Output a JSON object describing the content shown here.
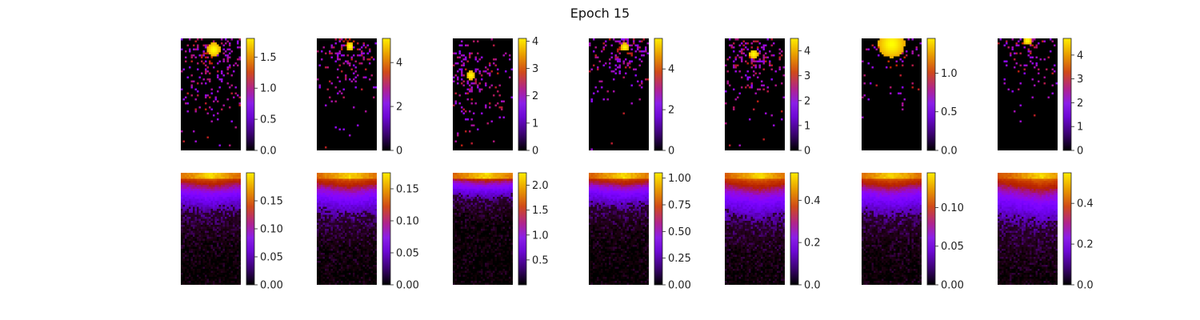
{
  "title": "Epoch 15",
  "colormap": "gnuplot",
  "chart_data": [
    {
      "type": "heatmap",
      "row": 1,
      "col": 1,
      "pattern": "sparse",
      "hotspot": [
        0.55,
        0.1
      ],
      "spread": 0.15,
      "density": 0.5,
      "fall": 0.7,
      "colorbar": {
        "range": [
          0,
          1.8
        ],
        "ticks": [
          0.0,
          0.5,
          1.0,
          1.5
        ],
        "labels": [
          "0.0",
          "0.5",
          "1.0",
          "1.5"
        ]
      }
    },
    {
      "type": "heatmap",
      "row": 1,
      "col": 2,
      "pattern": "sparse",
      "hotspot": [
        0.55,
        0.07
      ],
      "spread": 0.09,
      "density": 0.45,
      "fall": 0.55,
      "colorbar": {
        "range": [
          0,
          5.1
        ],
        "ticks": [
          0,
          2,
          4
        ],
        "labels": [
          "0",
          "2",
          "4"
        ]
      }
    },
    {
      "type": "heatmap",
      "row": 1,
      "col": 3,
      "pattern": "sparse",
      "hotspot": [
        0.3,
        0.33
      ],
      "spread": 0.1,
      "density": 0.45,
      "fall": 0.55,
      "colorbar": {
        "range": [
          0,
          4.1
        ],
        "ticks": [
          0,
          1,
          2,
          3,
          4
        ],
        "labels": [
          "0",
          "1",
          "2",
          "3",
          "4"
        ]
      }
    },
    {
      "type": "heatmap",
      "row": 1,
      "col": 4,
      "pattern": "sparse",
      "hotspot": [
        0.6,
        0.08
      ],
      "spread": 0.09,
      "density": 0.45,
      "fall": 0.55,
      "colorbar": {
        "range": [
          0,
          5.5
        ],
        "ticks": [
          0,
          2,
          4
        ],
        "labels": [
          "0",
          "2",
          "4"
        ]
      }
    },
    {
      "type": "heatmap",
      "row": 1,
      "col": 5,
      "pattern": "sparse",
      "hotspot": [
        0.48,
        0.14
      ],
      "spread": 0.1,
      "density": 0.5,
      "fall": 0.6,
      "colorbar": {
        "range": [
          0,
          4.5
        ],
        "ticks": [
          0,
          1,
          2,
          3,
          4
        ],
        "labels": [
          "0",
          "1",
          "2",
          "3",
          "4"
        ]
      }
    },
    {
      "type": "heatmap",
      "row": 1,
      "col": 6,
      "pattern": "sparse",
      "hotspot": [
        0.5,
        0.05
      ],
      "spread": 0.3,
      "density": 0.12,
      "fall": 0.9,
      "colorbar": {
        "range": [
          0,
          1.45
        ],
        "ticks": [
          0.0,
          0.5,
          1.0
        ],
        "labels": [
          "0.0",
          "0.5",
          "1.0"
        ]
      }
    },
    {
      "type": "heatmap",
      "row": 1,
      "col": 7,
      "pattern": "sparse",
      "hotspot": [
        0.5,
        0.02
      ],
      "spread": 0.1,
      "density": 0.45,
      "fall": 0.5,
      "colorbar": {
        "range": [
          0,
          4.7
        ],
        "ticks": [
          0,
          1,
          2,
          3,
          4
        ],
        "labels": [
          "0",
          "1",
          "2",
          "3",
          "4"
        ]
      }
    },
    {
      "type": "heatmap",
      "row": 2,
      "col": 1,
      "pattern": "gradient",
      "hotspot": [
        0.5,
        0.0
      ],
      "fall": 0.45,
      "colorbar": {
        "range": [
          0,
          0.2
        ],
        "ticks": [
          0.0,
          0.05,
          0.1,
          0.15
        ],
        "labels": [
          "0.00",
          "0.05",
          "0.10",
          "0.15"
        ]
      }
    },
    {
      "type": "heatmap",
      "row": 2,
      "col": 2,
      "pattern": "gradient",
      "hotspot": [
        0.55,
        0.0
      ],
      "fall": 0.5,
      "colorbar": {
        "range": [
          0,
          0.175
        ],
        "ticks": [
          0.0,
          0.05,
          0.1,
          0.15
        ],
        "labels": [
          "0.00",
          "0.05",
          "0.10",
          "0.15"
        ]
      }
    },
    {
      "type": "heatmap",
      "row": 2,
      "col": 3,
      "pattern": "gradient",
      "hotspot": [
        0.55,
        0.0
      ],
      "fall": 0.3,
      "colorbar": {
        "range": [
          0,
          2.25
        ],
        "ticks": [
          0.5,
          1.0,
          1.5,
          2.0
        ],
        "labels": [
          "0.5",
          "1.0",
          "1.5",
          "2.0"
        ]
      }
    },
    {
      "type": "heatmap",
      "row": 2,
      "col": 4,
      "pattern": "gradient",
      "hotspot": [
        0.58,
        0.0
      ],
      "fall": 0.4,
      "colorbar": {
        "range": [
          0,
          1.05
        ],
        "ticks": [
          0.0,
          0.25,
          0.5,
          0.75,
          1.0
        ],
        "labels": [
          "0.00",
          "0.25",
          "0.50",
          "0.75",
          "1.00"
        ]
      }
    },
    {
      "type": "heatmap",
      "row": 2,
      "col": 5,
      "pattern": "gradient",
      "hotspot": [
        0.58,
        0.0
      ],
      "fall": 0.55,
      "colorbar": {
        "range": [
          0,
          0.53
        ],
        "ticks": [
          0.0,
          0.2,
          0.4
        ],
        "labels": [
          "0.0",
          "0.2",
          "0.4"
        ]
      }
    },
    {
      "type": "heatmap",
      "row": 2,
      "col": 6,
      "pattern": "gradient",
      "hotspot": [
        0.5,
        0.0
      ],
      "fall": 0.5,
      "colorbar": {
        "range": [
          0,
          0.145
        ],
        "ticks": [
          0.0,
          0.05,
          0.1
        ],
        "labels": [
          "0.00",
          "0.05",
          "0.10"
        ]
      }
    },
    {
      "type": "heatmap",
      "row": 2,
      "col": 7,
      "pattern": "gradient",
      "hotspot": [
        0.72,
        0.0
      ],
      "fall": 0.6,
      "colorbar": {
        "range": [
          0,
          0.55
        ],
        "ticks": [
          0.0,
          0.2,
          0.4
        ],
        "labels": [
          "0.0",
          "0.2",
          "0.4"
        ]
      }
    }
  ]
}
